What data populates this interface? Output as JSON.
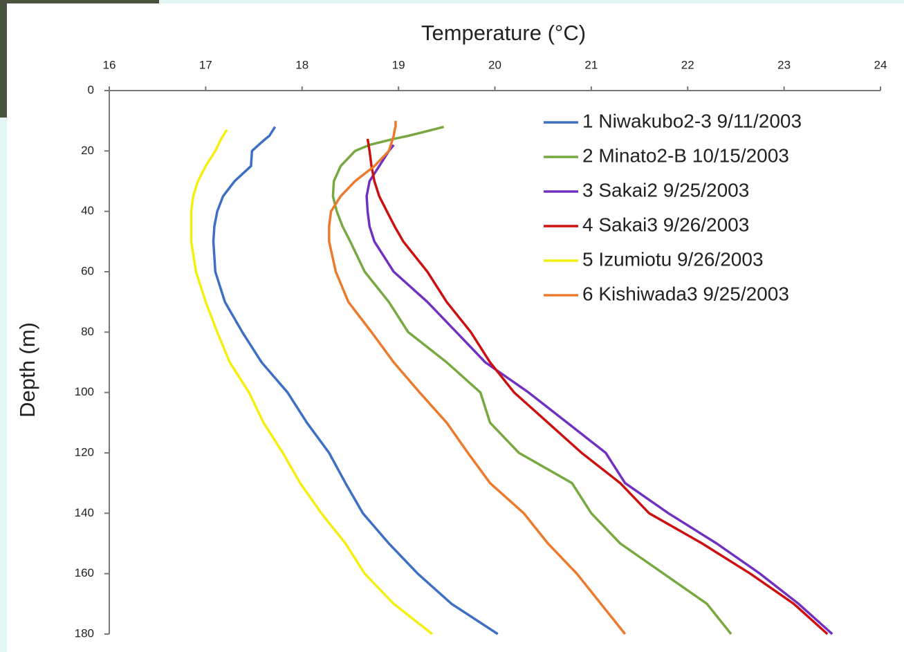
{
  "chart_data": {
    "type": "line",
    "title": "Temperature (°C)",
    "y_label": "Depth (m)",
    "xlim": [
      16,
      24
    ],
    "xticks": [
      16,
      17,
      18,
      19,
      20,
      21,
      22,
      23,
      24
    ],
    "ylim": [
      0,
      180
    ],
    "yticks": [
      0,
      20,
      40,
      60,
      80,
      100,
      120,
      140,
      160,
      180
    ],
    "y_inverted": true,
    "y": [
      10,
      12,
      13,
      15,
      16,
      18,
      20,
      25,
      30,
      35,
      40,
      45,
      50,
      60,
      70,
      80,
      90,
      100,
      110,
      120,
      130,
      140,
      150,
      160,
      170,
      180
    ],
    "series": [
      {
        "name": "1 Niwakubo2-3 9/11/2003",
        "color": "#3e6fc4",
        "values": [
          null,
          17.72,
          17.7,
          17.66,
          17.62,
          17.55,
          17.48,
          17.47,
          17.3,
          17.18,
          17.12,
          17.09,
          17.08,
          17.1,
          17.2,
          17.38,
          17.58,
          17.85,
          18.05,
          18.28,
          18.45,
          18.63,
          18.9,
          19.2,
          19.55,
          20.03
        ]
      },
      {
        "name": "2 Minato2-B 10/15/2003",
        "color": "#78a840",
        "values": [
          null,
          19.47,
          19.35,
          19.1,
          18.95,
          18.7,
          18.55,
          18.4,
          18.33,
          18.32,
          18.36,
          18.42,
          18.5,
          18.65,
          18.9,
          19.1,
          19.5,
          19.85,
          19.95,
          20.25,
          20.8,
          21.0,
          21.3,
          21.75,
          22.2,
          22.45
        ]
      },
      {
        "name": "3 Sakai2 9/25/2003",
        "color": "#7030c0",
        "values": [
          null,
          null,
          null,
          null,
          null,
          18.95,
          18.9,
          18.8,
          18.7,
          18.67,
          18.68,
          18.7,
          18.75,
          18.95,
          19.3,
          19.6,
          19.9,
          20.35,
          20.75,
          21.15,
          21.35,
          21.8,
          22.3,
          22.75,
          23.15,
          23.5
        ]
      },
      {
        "name": "4 Sakai3 9/26/2003",
        "color": "#cc1010",
        "values": [
          null,
          null,
          null,
          null,
          18.68,
          18.69,
          18.7,
          18.72,
          18.75,
          18.8,
          18.88,
          18.96,
          19.05,
          19.3,
          19.5,
          19.75,
          19.95,
          20.2,
          20.55,
          20.9,
          21.3,
          21.6,
          22.15,
          22.65,
          23.1,
          23.45
        ]
      },
      {
        "name": "5 Izumiotu 9/26/2003",
        "color": "#f5ef10",
        "values": [
          null,
          null,
          17.22,
          17.18,
          17.16,
          17.13,
          17.1,
          17.0,
          16.92,
          16.87,
          16.85,
          16.85,
          16.85,
          16.9,
          17.0,
          17.12,
          17.25,
          17.45,
          17.6,
          17.8,
          17.98,
          18.2,
          18.45,
          18.65,
          18.95,
          19.35
        ]
      },
      {
        "name": "6 Kishiwada3 9/25/2003",
        "color": "#ec7a2c",
        "values": [
          18.97,
          18.97,
          18.96,
          18.95,
          18.94,
          18.92,
          18.9,
          18.75,
          18.55,
          18.4,
          18.3,
          18.28,
          18.28,
          18.35,
          18.48,
          18.72,
          18.95,
          19.22,
          19.5,
          19.72,
          19.95,
          20.3,
          20.55,
          20.85,
          21.1,
          21.35
        ]
      }
    ]
  }
}
